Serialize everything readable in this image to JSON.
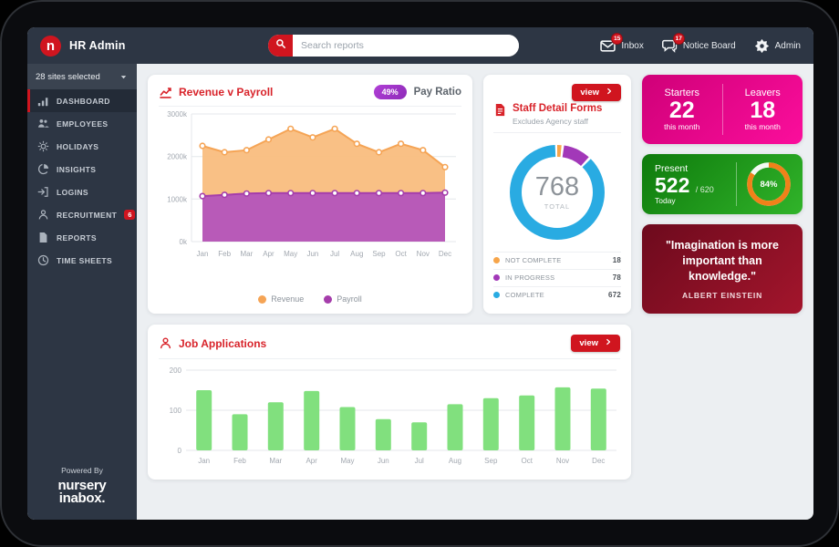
{
  "app": {
    "title": "HR Admin"
  },
  "topbar": {
    "search_placeholder": "Search reports",
    "inbox": {
      "label": "Inbox",
      "badge": "15"
    },
    "notice_board": {
      "label": "Notice Board",
      "badge": "17"
    },
    "admin_label": "Admin"
  },
  "sidebar": {
    "sites_label": "28 sites selected",
    "items": [
      {
        "label": "DASHBOARD",
        "icon": "bar-chart",
        "active": true
      },
      {
        "label": "EMPLOYEES",
        "icon": "people"
      },
      {
        "label": "HOLIDAYS",
        "icon": "sun"
      },
      {
        "label": "INSIGHTS",
        "icon": "pie-chart"
      },
      {
        "label": "LOGINS",
        "icon": "login"
      },
      {
        "label": "RECRUITMENT",
        "icon": "person",
        "badge": "6"
      },
      {
        "label": "REPORTS",
        "icon": "document"
      },
      {
        "label": "TIME SHEETS",
        "icon": "clock"
      }
    ],
    "powered_by": "Powered By",
    "brand": {
      "line1": "nursery",
      "line2": "inabox."
    }
  },
  "revenue_card": {
    "title": "Revenue v Payroll",
    "pay_ratio": {
      "value": "49%",
      "label": "Pay Ratio"
    }
  },
  "staff_card": {
    "view_label": "view",
    "title": "Staff Detail Forms",
    "subtitle": "Excludes Agency staff",
    "total": {
      "value": "768",
      "label": "TOTAL"
    }
  },
  "stats_card": {
    "starters": {
      "label": "Starters",
      "value": "22",
      "caption": "this month"
    },
    "leavers": {
      "label": "Leavers",
      "value": "18",
      "caption": "this month"
    }
  },
  "present_card": {
    "label": "Present",
    "value": "522",
    "total": "/ 620",
    "caption": "Today",
    "percent": "84%"
  },
  "quote_card": {
    "text": "\"Imagination is more important than knowledge.\"",
    "author": "ALBERT EINSTEIN"
  },
  "jobs_card": {
    "title": "Job Applications",
    "view_label": "view"
  },
  "colors": {
    "accent_red": "#d0151f",
    "title_red": "#d8232a",
    "badge_purple": "#a438c8",
    "pink_card": "#e6008a",
    "green_card": "#1f941b",
    "quote_card": "#8a1024",
    "dark_slate": "#2d3644"
  },
  "chart_data": [
    {
      "id": "revenue_v_payroll",
      "type": "area",
      "title": "Revenue v Payroll",
      "categories": [
        "Jan",
        "Feb",
        "Mar",
        "Apr",
        "May",
        "Jun",
        "Jul",
        "Aug",
        "Sep",
        "Oct",
        "Nov",
        "Dec"
      ],
      "series": [
        {
          "name": "Revenue",
          "color": "#f5a455",
          "fill": "#f9bd7e",
          "values": [
            2250,
            2100,
            2150,
            2400,
            2650,
            2450,
            2650,
            2300,
            2100,
            2300,
            2150,
            1750
          ]
        },
        {
          "name": "Payroll",
          "color": "#a53dab",
          "fill": "#b454ba",
          "values": [
            1070,
            1100,
            1130,
            1140,
            1140,
            1140,
            1140,
            1140,
            1140,
            1140,
            1140,
            1150
          ]
        }
      ],
      "ylim": [
        0,
        3000
      ],
      "yticks": [
        0,
        1000,
        2000,
        3000
      ],
      "ytick_suffix": "k",
      "legend_position": "bottom",
      "grid": true
    },
    {
      "id": "staff_detail_forms",
      "type": "donut",
      "title": "Staff Detail Forms",
      "total": 768,
      "segments": [
        {
          "label": "NOT COMPLETE",
          "value": 18,
          "color": "#f7a54a"
        },
        {
          "label": "IN PROGRESS",
          "value": 78,
          "color": "#a238b8"
        },
        {
          "label": "COMPLETE",
          "value": 672,
          "color": "#29abe2"
        }
      ]
    },
    {
      "id": "present_attendance",
      "type": "donut",
      "title": "Present Today",
      "percent": 84,
      "present": 522,
      "total": 620,
      "color": "#f08119",
      "track": "#ffffff"
    },
    {
      "id": "job_applications",
      "type": "bar",
      "title": "Job Applications",
      "categories": [
        "Jan",
        "Feb",
        "Mar",
        "Apr",
        "May",
        "Jun",
        "Jul",
        "Aug",
        "Sep",
        "Oct",
        "Nov",
        "Dec"
      ],
      "values": [
        150,
        90,
        120,
        148,
        108,
        78,
        70,
        115,
        130,
        137,
        157,
        154
      ],
      "color": "#81e07e",
      "ylim": [
        0,
        200
      ],
      "yticks": [
        0,
        100,
        200
      ],
      "grid": true
    }
  ]
}
